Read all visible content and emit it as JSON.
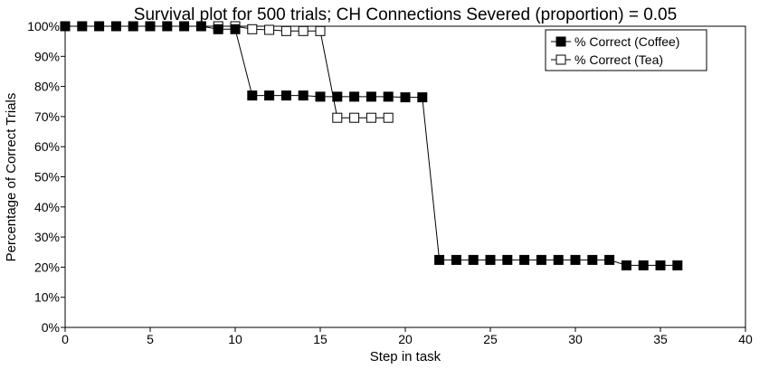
{
  "chart_data": {
    "type": "line",
    "title": "Survival plot for 500 trials; CH Connections Severed (proportion) = 0.05",
    "xlabel": "Step in task",
    "ylabel": "Percentage of Correct Trials",
    "xlim": [
      0,
      40
    ],
    "ylim": [
      0,
      100
    ],
    "x_ticks": [
      "0",
      "5",
      "10",
      "15",
      "20",
      "25",
      "30",
      "35",
      "40"
    ],
    "y_ticks": [
      "0%",
      "10%",
      "20%",
      "30%",
      "40%",
      "50%",
      "60%",
      "70%",
      "80%",
      "90%",
      "100%"
    ],
    "grid": false,
    "legend_position": "top-right",
    "series": [
      {
        "name": "% Correct (Coffee)",
        "marker": "filled-square",
        "color": "#000000",
        "x": [
          0,
          1,
          2,
          3,
          4,
          5,
          6,
          7,
          8,
          9,
          10,
          11,
          12,
          13,
          14,
          15,
          16,
          17,
          18,
          19,
          20,
          21,
          22,
          23,
          24,
          25,
          26,
          27,
          28,
          29,
          30,
          31,
          32,
          33,
          34,
          35,
          36
        ],
        "y": [
          100,
          100,
          100,
          100,
          100,
          100,
          100,
          100,
          100,
          99,
          99,
          77,
          77,
          77,
          77,
          76.6,
          76.6,
          76.6,
          76.6,
          76.6,
          76.4,
          76.4,
          22.4,
          22.4,
          22.4,
          22.4,
          22.4,
          22.4,
          22.4,
          22.4,
          22.4,
          22.4,
          22.4,
          20.6,
          20.6,
          20.6,
          20.6
        ]
      },
      {
        "name": "% Correct (Tea)",
        "marker": "open-square",
        "color": "#000000",
        "x": [
          9,
          10,
          11,
          12,
          13,
          14,
          15,
          16,
          17,
          18,
          19
        ],
        "y": [
          100,
          100,
          99,
          98.8,
          98.4,
          98.4,
          98.4,
          69.6,
          69.6,
          69.6,
          69.6
        ]
      }
    ]
  }
}
